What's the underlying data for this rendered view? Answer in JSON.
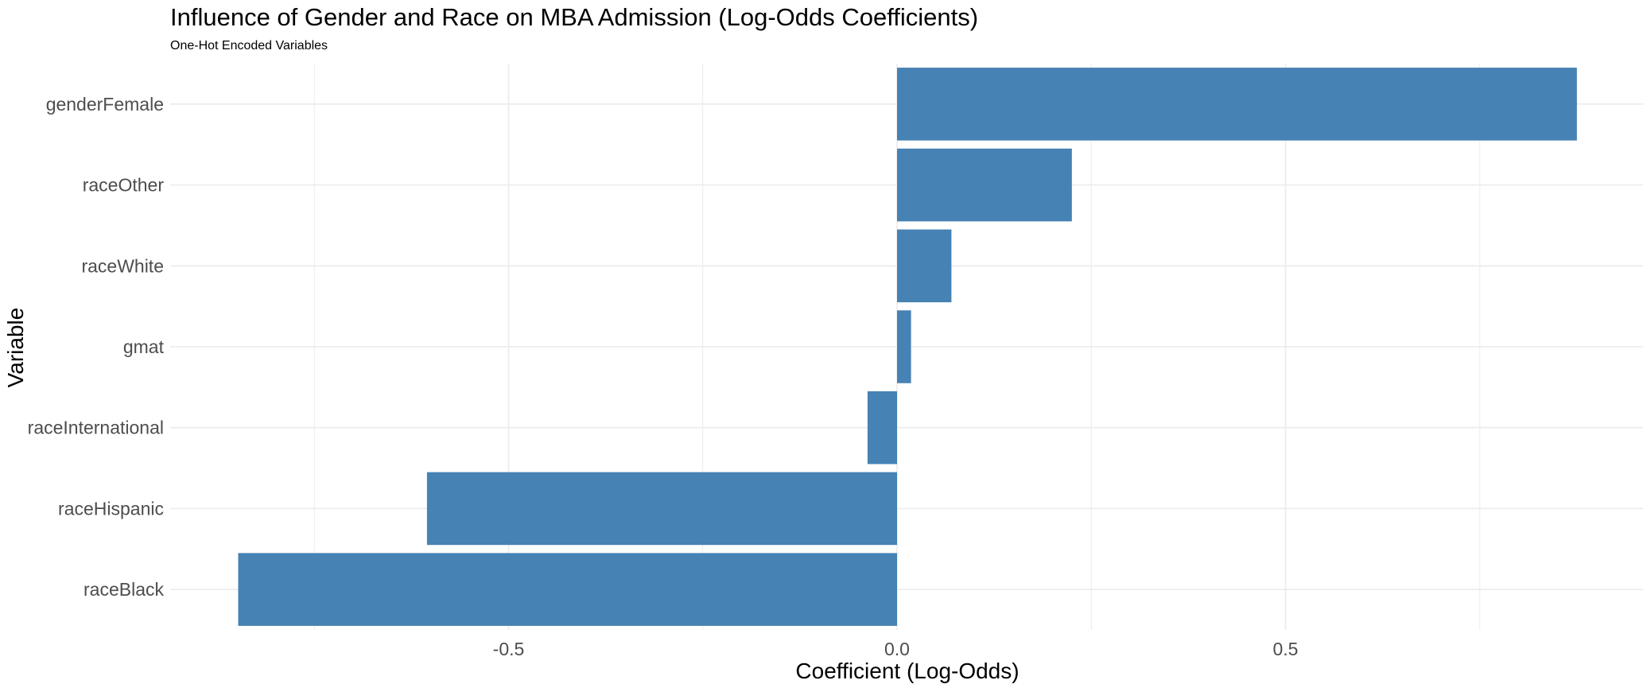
{
  "chart_data": {
    "type": "bar",
    "orientation": "horizontal",
    "title": "Influence of Gender and Race on MBA Admission (Log-Odds Coefficients)",
    "subtitle": "One-Hot Encoded Variables",
    "xlabel": "Coefficient (Log-Odds)",
    "ylabel": "Variable",
    "categories": [
      "genderFemale",
      "raceOther",
      "raceWhite",
      "gmat",
      "raceInternational",
      "raceHispanic",
      "raceBlack"
    ],
    "values": [
      0.875,
      0.225,
      0.07,
      0.018,
      -0.038,
      -0.605,
      -0.848
    ],
    "xlim": [
      -0.9,
      0.96
    ],
    "x_ticks": [
      -0.5,
      0.0,
      0.5
    ],
    "x_tick_labels": [
      "-0.5",
      "0.0",
      "0.5"
    ],
    "grid": true,
    "legend": "none",
    "bar_color": "#4682b4"
  }
}
